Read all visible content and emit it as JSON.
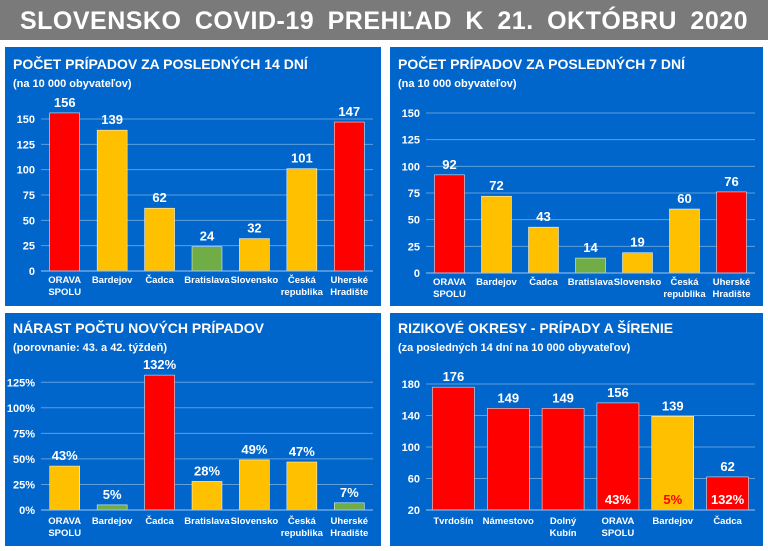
{
  "page_title": "SLOVENSKO  COVID-19  PREHĽAD  K 21. OKTÓBRU  2020",
  "colors": {
    "red": "#ff0000",
    "yellow": "#ffc000",
    "green": "#70ad47",
    "panel": "#0066cc",
    "header": "#7a7a7a"
  },
  "chart_data": [
    {
      "type": "bar",
      "title": "POČET PRÍPADOV ZA POSLEDNÝCH 14 DNÍ",
      "subtitle": "(na 10 000 obyvateľov)",
      "categories": [
        [
          "ORAVA",
          "SPOLU"
        ],
        [
          "Bardejov"
        ],
        [
          "Čadca"
        ],
        [
          "Bratislava"
        ],
        [
          "Slovensko"
        ],
        [
          "Česká",
          "republika"
        ],
        [
          "Uherské",
          "Hradište"
        ]
      ],
      "values": [
        156,
        139,
        62,
        24,
        32,
        101,
        147
      ],
      "data_labels": [
        "156",
        "139",
        "62",
        "24",
        "32",
        "101",
        "147"
      ],
      "bar_colors": [
        "#ff0000",
        "#ffc000",
        "#ffc000",
        "#70ad47",
        "#ffc000",
        "#ffc000",
        "#ff0000"
      ],
      "ylim": [
        0,
        150
      ],
      "yticks": [
        "0",
        "25",
        "50",
        "75",
        "100",
        "125",
        "150"
      ],
      "grid": true
    },
    {
      "type": "bar",
      "title": "POČET PRÍPADOV ZA POSLEDNÝCH 7 DNÍ",
      "subtitle": "(na 10 000 obyvateľov)",
      "categories": [
        [
          "ORAVA",
          "SPOLU"
        ],
        [
          "Bardejov"
        ],
        [
          "Čadca"
        ],
        [
          "Bratislava"
        ],
        [
          "Slovensko"
        ],
        [
          "Česká",
          "republika"
        ],
        [
          "Uherské",
          "Hradište"
        ]
      ],
      "values": [
        92,
        72,
        43,
        14,
        19,
        60,
        76
      ],
      "data_labels": [
        "92",
        "72",
        "43",
        "14",
        "19",
        "60",
        "76"
      ],
      "bar_colors": [
        "#ff0000",
        "#ffc000",
        "#ffc000",
        "#70ad47",
        "#ffc000",
        "#ffc000",
        "#ff0000"
      ],
      "ylim": [
        0,
        150
      ],
      "yticks": [
        "0",
        "25",
        "50",
        "75",
        "100",
        "125",
        "150"
      ],
      "grid": true
    },
    {
      "type": "bar",
      "title": "NÁRAST POČTU NOVÝCH PRÍPADOV",
      "subtitle": "(porovnanie:  43. a 42. týždeň)",
      "categories": [
        [
          "ORAVA",
          "SPOLU"
        ],
        [
          "Bardejov"
        ],
        [
          "Čadca"
        ],
        [
          "Bratislava"
        ],
        [
          "Slovensko"
        ],
        [
          "Česká",
          "republika"
        ],
        [
          "Uherské",
          "Hradište"
        ]
      ],
      "values": [
        43,
        5,
        132,
        28,
        49,
        47,
        7
      ],
      "data_labels": [
        "43%",
        "5%",
        "132%",
        "28%",
        "49%",
        "47%",
        "7%"
      ],
      "bar_colors": [
        "#ffc000",
        "#70ad47",
        "#ff0000",
        "#ffc000",
        "#ffc000",
        "#ffc000",
        "#70ad47"
      ],
      "ylim": [
        0,
        137
      ],
      "yticks": [
        "0%",
        "25%",
        "50%",
        "75%",
        "100%",
        "125%"
      ],
      "ytick_values": [
        0,
        25,
        50,
        75,
        100,
        125
      ],
      "grid": true
    },
    {
      "type": "bar",
      "title": "RIZIKOVÉ OKRESY - PRÍPADY A ŠÍRENIE",
      "subtitle": "(za posledných 14 dní na 10 000 obyvateľov)",
      "categories": [
        [
          "Tvrdošín"
        ],
        [
          "Námestovo"
        ],
        [
          "Dolný",
          "Kubín"
        ],
        [
          "ORAVA",
          "SPOLU"
        ],
        [
          "Bardejov"
        ],
        [
          "Čadca"
        ]
      ],
      "values": [
        176,
        149,
        149,
        156,
        139,
        62
      ],
      "data_labels": [
        "176",
        "149",
        "149",
        "156",
        "139",
        "62"
      ],
      "inner_labels": [
        "",
        "",
        "",
        "43%",
        "5%",
        "132%"
      ],
      "bar_colors": [
        "#ff0000",
        "#ff0000",
        "#ff0000",
        "#ff0000",
        "#ffc000",
        "#ff0000"
      ],
      "ylim": [
        20,
        180
      ],
      "yticks": [
        "20",
        "60",
        "100",
        "140",
        "180"
      ],
      "grid": true
    }
  ]
}
